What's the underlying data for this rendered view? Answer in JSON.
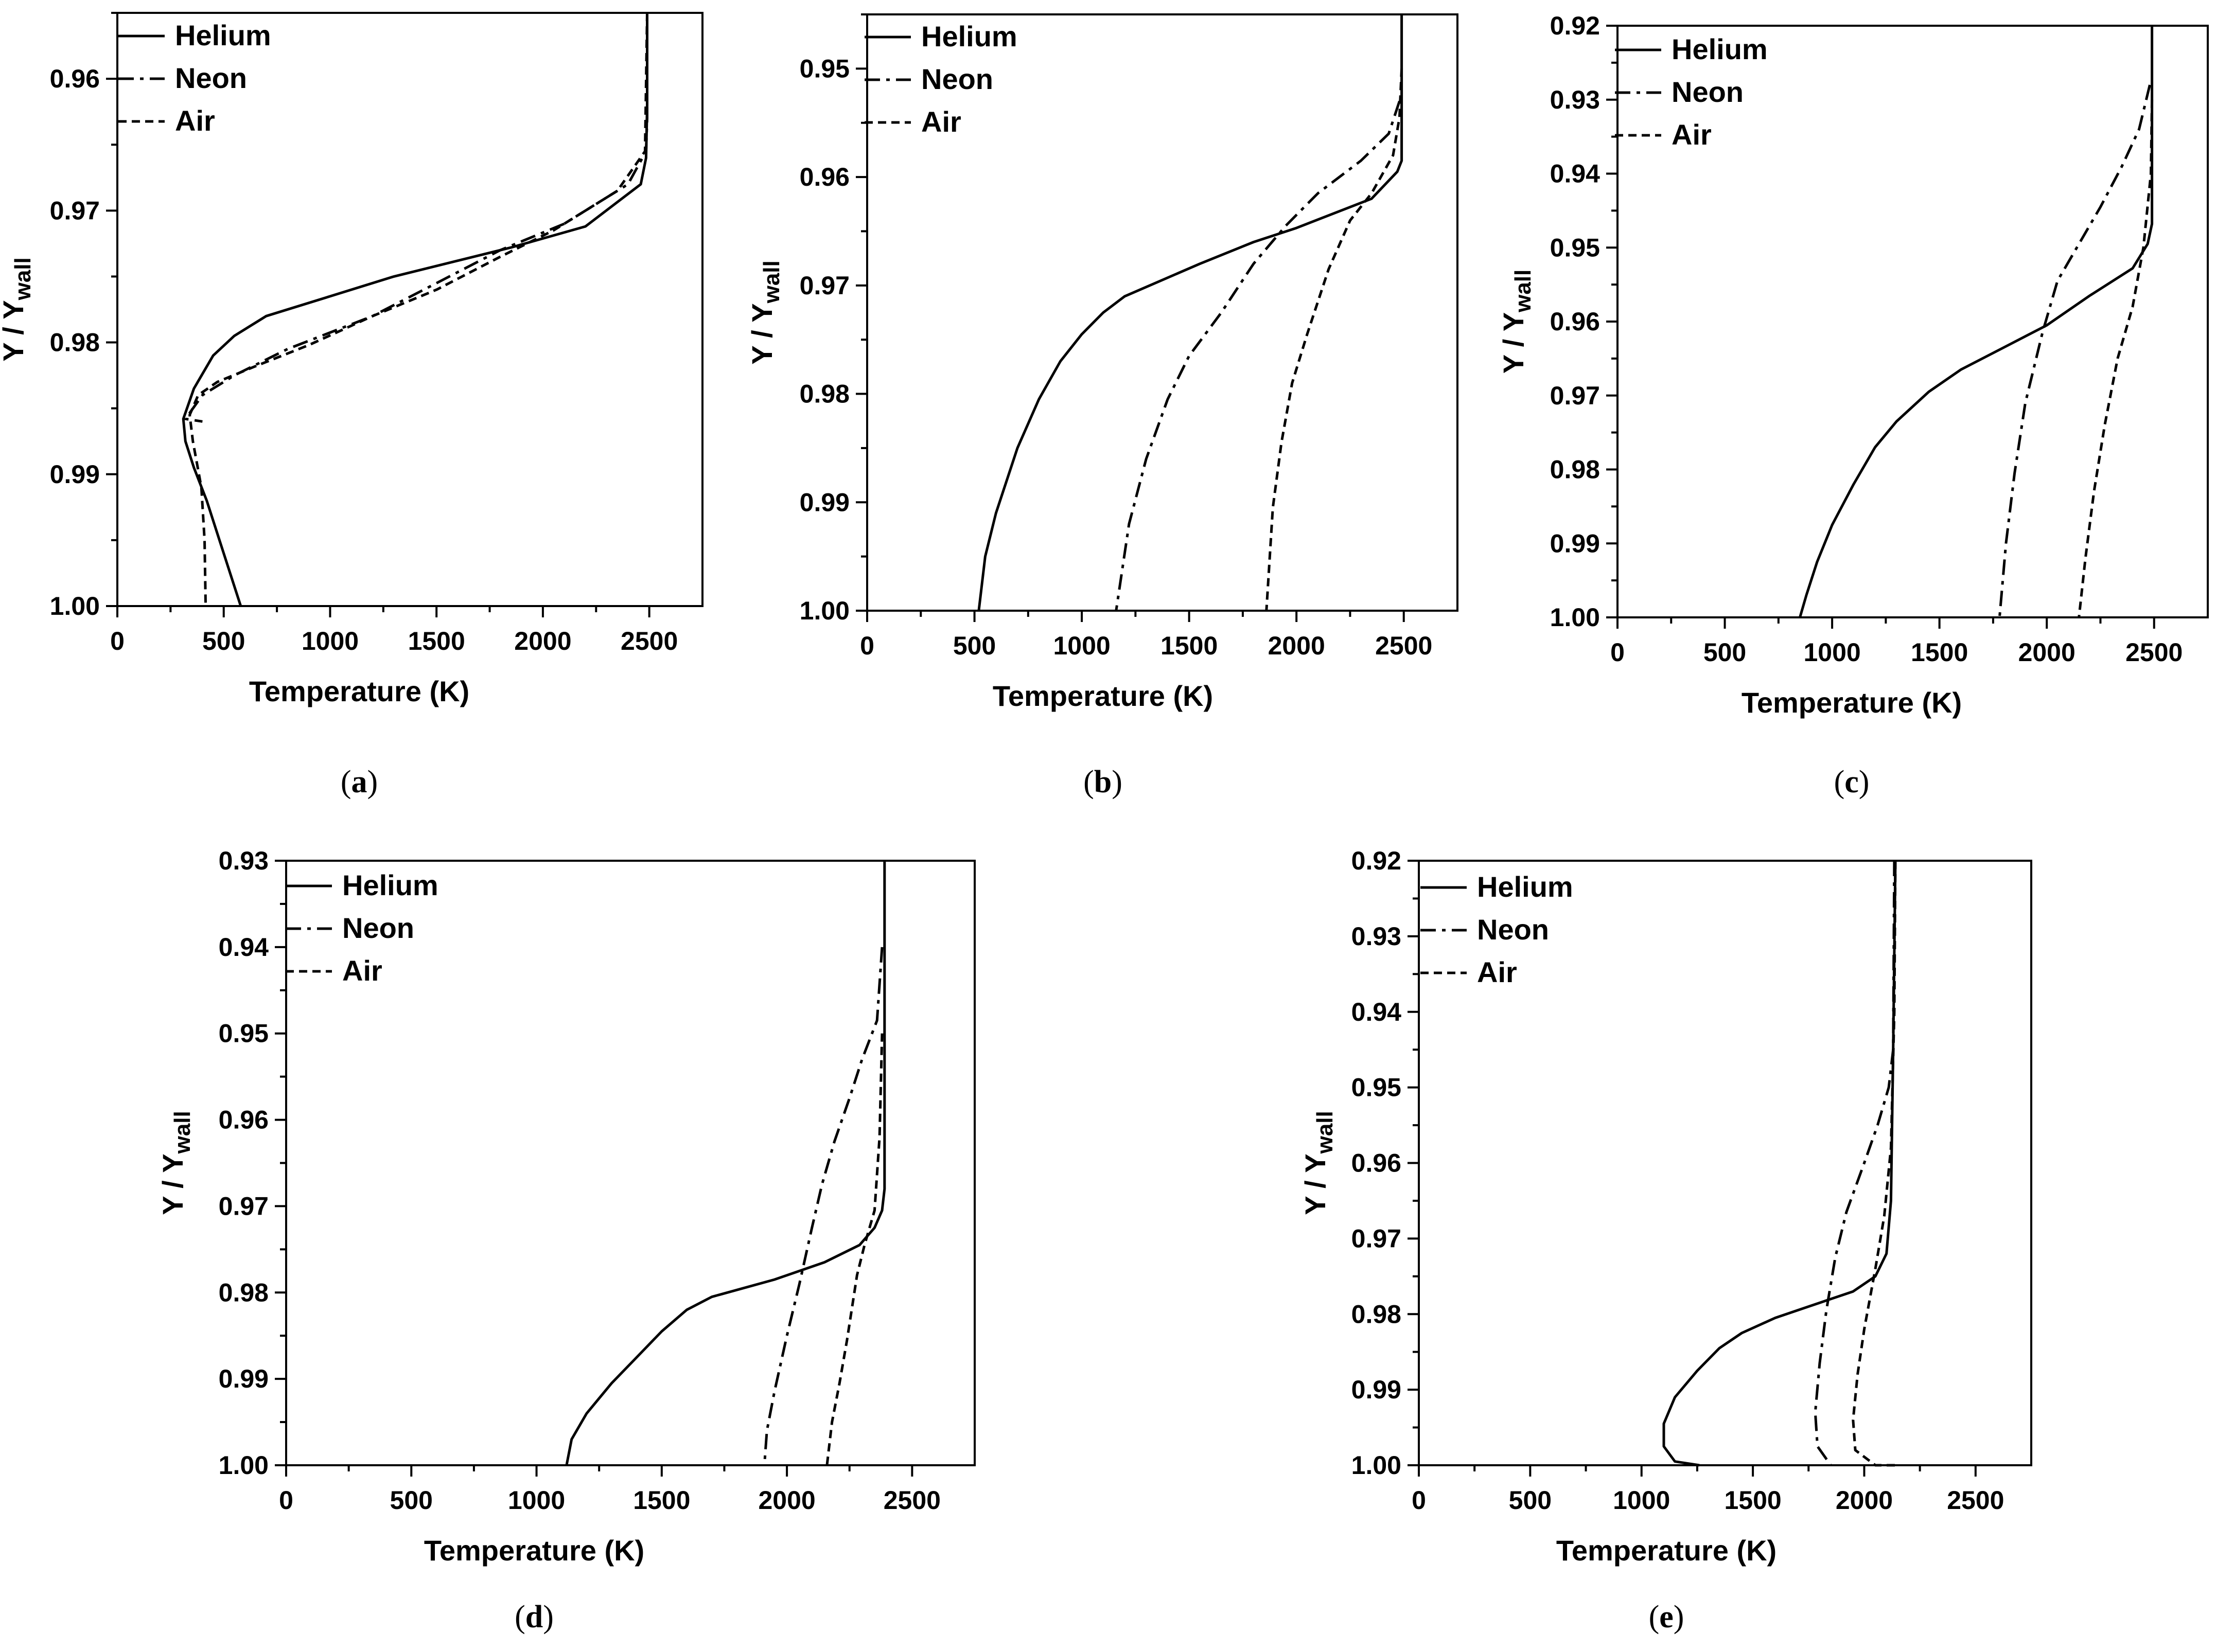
{
  "figure": {
    "panel_letters": [
      "a",
      "b",
      "c",
      "d",
      "e"
    ],
    "colors": {
      "ink": "#000000",
      "background": "#ffffff"
    }
  },
  "chart_data": [
    {
      "type": "line",
      "panel": "a",
      "xlabel": "Temperature (K)",
      "ylabel": "Y / Y",
      "ylabel_sub": "wall",
      "xlim": [
        0,
        2750
      ],
      "ylim": [
        0.955,
        1.0
      ],
      "y_inverted": true,
      "xticks": [
        0,
        500,
        1000,
        1500,
        2000,
        2500
      ],
      "yticks": [
        0.96,
        0.97,
        0.98,
        0.99,
        1.0
      ],
      "ytick_labels": [
        "0.96",
        "0.97",
        "0.98",
        "0.99",
        "1.00"
      ],
      "legend": "top-left",
      "series": [
        {
          "name": "Helium",
          "style": "solid",
          "points": [
            [
              2490,
              0.955
            ],
            [
              2490,
              0.962
            ],
            [
              2485,
              0.966
            ],
            [
              2460,
              0.968
            ],
            [
              2200,
              0.9712
            ],
            [
              1850,
              0.9728
            ],
            [
              1600,
              0.9738
            ],
            [
              1300,
              0.975
            ],
            [
              1000,
              0.9765
            ],
            [
              700,
              0.978
            ],
            [
              550,
              0.9795
            ],
            [
              450,
              0.981
            ],
            [
              360,
              0.9835
            ],
            [
              310,
              0.9858
            ],
            [
              320,
              0.9875
            ],
            [
              360,
              0.9895
            ],
            [
              420,
              0.992
            ],
            [
              500,
              0.996
            ],
            [
              580,
              1.0
            ]
          ]
        },
        {
          "name": "Neon",
          "style": "dashdot",
          "points": [
            [
              2490,
              0.955
            ],
            [
              2490,
              0.963
            ],
            [
              2485,
              0.9655
            ],
            [
              2400,
              0.968
            ],
            [
              2100,
              0.971
            ],
            [
              1800,
              0.973
            ],
            [
              1500,
              0.9755
            ],
            [
              1200,
              0.978
            ],
            [
              800,
              0.9805
            ],
            [
              550,
              0.9825
            ],
            [
              400,
              0.984
            ],
            [
              320,
              0.9858
            ],
            [
              400,
              0.986
            ]
          ]
        },
        {
          "name": "Air",
          "style": "dotted",
          "points": [
            [
              2490,
              0.955
            ],
            [
              2480,
              0.9655
            ],
            [
              2350,
              0.9685
            ],
            [
              2050,
              0.9715
            ],
            [
              1800,
              0.9735
            ],
            [
              1500,
              0.976
            ],
            [
              1200,
              0.978
            ],
            [
              900,
              0.9802
            ],
            [
              650,
              0.9818
            ],
            [
              470,
              0.983
            ],
            [
              380,
              0.984
            ],
            [
              340,
              0.9855
            ],
            [
              355,
              0.9875
            ],
            [
              395,
              0.991
            ],
            [
              410,
              0.995
            ],
            [
              415,
              1.0
            ]
          ]
        }
      ]
    },
    {
      "type": "line",
      "panel": "b",
      "xlabel": "Temperature (K)",
      "ylabel": "Y / Y",
      "ylabel_sub": "wall",
      "xlim": [
        0,
        2750
      ],
      "ylim": [
        0.945,
        1.0
      ],
      "y_inverted": true,
      "xticks": [
        0,
        500,
        1000,
        1500,
        2000,
        2500
      ],
      "yticks": [
        0.95,
        0.96,
        0.97,
        0.98,
        0.99,
        1.0
      ],
      "ytick_labels": [
        "0.95",
        "0.96",
        "0.97",
        "0.98",
        "0.99",
        "1.00"
      ],
      "legend": "top-left",
      "series": [
        {
          "name": "Helium",
          "style": "solid",
          "points": [
            [
              2490,
              0.945
            ],
            [
              2490,
              0.9585
            ],
            [
              2470,
              0.9595
            ],
            [
              2350,
              0.962
            ],
            [
              2000,
              0.9647
            ],
            [
              1800,
              0.966
            ],
            [
              1550,
              0.968
            ],
            [
              1200,
              0.971
            ],
            [
              1100,
              0.9725
            ],
            [
              1000,
              0.9745
            ],
            [
              900,
              0.977
            ],
            [
              800,
              0.9805
            ],
            [
              700,
              0.985
            ],
            [
              600,
              0.991
            ],
            [
              550,
              0.995
            ],
            [
              520,
              1.0
            ]
          ]
        },
        {
          "name": "Neon",
          "style": "dashdot",
          "points": [
            [
              2480,
              0.953
            ],
            [
              2430,
              0.956
            ],
            [
              2300,
              0.9585
            ],
            [
              2100,
              0.9615
            ],
            [
              1950,
              0.9645
            ],
            [
              1800,
              0.968
            ],
            [
              1650,
              0.9725
            ],
            [
              1500,
              0.9765
            ],
            [
              1400,
              0.9805
            ],
            [
              1300,
              0.986
            ],
            [
              1220,
              0.992
            ],
            [
              1160,
              1.0
            ]
          ]
        },
        {
          "name": "Air",
          "style": "dotted",
          "points": [
            [
              2490,
              0.95
            ],
            [
              2480,
              0.9545
            ],
            [
              2450,
              0.958
            ],
            [
              2350,
              0.9615
            ],
            [
              2250,
              0.964
            ],
            [
              2150,
              0.9685
            ],
            [
              2050,
              0.9745
            ],
            [
              1980,
              0.979
            ],
            [
              1930,
              0.9845
            ],
            [
              1890,
              0.9905
            ],
            [
              1860,
              1.0
            ]
          ]
        }
      ]
    },
    {
      "type": "line",
      "panel": "c",
      "xlabel": "Temperature (K)",
      "ylabel": "Y / Y",
      "ylabel_sub": "wall",
      "xlim": [
        0,
        2750
      ],
      "ylim": [
        0.92,
        1.0
      ],
      "y_inverted": true,
      "xticks": [
        0,
        500,
        1000,
        1500,
        2000,
        2500
      ],
      "yticks": [
        0.92,
        0.93,
        0.94,
        0.95,
        0.96,
        0.97,
        0.98,
        0.99,
        1.0
      ],
      "ytick_labels": [
        "0.92",
        "0.93",
        "0.94",
        "0.95",
        "0.96",
        "0.97",
        "0.98",
        "0.99",
        "1.00"
      ],
      "legend": "top-left",
      "series": [
        {
          "name": "Helium",
          "style": "solid",
          "points": [
            [
              2490,
              0.92
            ],
            [
              2490,
              0.9468
            ],
            [
              2470,
              0.9495
            ],
            [
              2400,
              0.9528
            ],
            [
              2200,
              0.9565
            ],
            [
              2000,
              0.9605
            ],
            [
              1800,
              0.9635
            ],
            [
              1600,
              0.9665
            ],
            [
              1450,
              0.9695
            ],
            [
              1300,
              0.9735
            ],
            [
              1200,
              0.977
            ],
            [
              1100,
              0.982
            ],
            [
              1000,
              0.9875
            ],
            [
              930,
              0.9925
            ],
            [
              880,
              0.997
            ],
            [
              850,
              1.0
            ]
          ]
        },
        {
          "name": "Neon",
          "style": "dashdot",
          "points": [
            [
              2480,
              0.928
            ],
            [
              2430,
              0.934
            ],
            [
              2350,
              0.939
            ],
            [
              2250,
              0.9445
            ],
            [
              2150,
              0.9495
            ],
            [
              2050,
              0.9545
            ],
            [
              1980,
              0.9615
            ],
            [
              1900,
              0.971
            ],
            [
              1850,
              0.9805
            ],
            [
              1810,
              0.99
            ],
            [
              1780,
              1.0
            ]
          ]
        },
        {
          "name": "Air",
          "style": "dotted",
          "points": [
            [
              2490,
              0.93
            ],
            [
              2485,
              0.94
            ],
            [
              2450,
              0.95
            ],
            [
              2400,
              0.958
            ],
            [
              2330,
              0.965
            ],
            [
              2270,
              0.974
            ],
            [
              2220,
              0.983
            ],
            [
              2180,
              0.992
            ],
            [
              2150,
              1.0
            ]
          ]
        }
      ]
    },
    {
      "type": "line",
      "panel": "d",
      "xlabel": "Temperature (K)",
      "ylabel": "Y / Y",
      "ylabel_sub": "wall",
      "xlim": [
        0,
        2750
      ],
      "ylim": [
        0.93,
        1.0
      ],
      "y_inverted": true,
      "xticks": [
        0,
        500,
        1000,
        1500,
        2000,
        2500
      ],
      "yticks": [
        0.93,
        0.94,
        0.95,
        0.96,
        0.97,
        0.98,
        0.99,
        1.0
      ],
      "ytick_labels": [
        "0.93",
        "0.94",
        "0.95",
        "0.96",
        "0.97",
        "0.98",
        "0.99",
        "1.00"
      ],
      "legend": "top-left",
      "series": [
        {
          "name": "Helium",
          "style": "solid",
          "points": [
            [
              2390,
              0.93
            ],
            [
              2390,
              0.968
            ],
            [
              2380,
              0.9705
            ],
            [
              2350,
              0.9725
            ],
            [
              2290,
              0.9745
            ],
            [
              2150,
              0.9765
            ],
            [
              1950,
              0.9785
            ],
            [
              1700,
              0.9805
            ],
            [
              1600,
              0.982
            ],
            [
              1500,
              0.9845
            ],
            [
              1400,
              0.9875
            ],
            [
              1300,
              0.9905
            ],
            [
              1200,
              0.994
            ],
            [
              1140,
              0.997
            ],
            [
              1120,
              1.0
            ]
          ]
        },
        {
          "name": "Neon",
          "style": "dashdot",
          "points": [
            [
              2380,
              0.94
            ],
            [
              2360,
              0.9485
            ],
            [
              2300,
              0.953
            ],
            [
              2250,
              0.9575
            ],
            [
              2190,
              0.9625
            ],
            [
              2140,
              0.9675
            ],
            [
              2100,
              0.9725
            ],
            [
              2050,
              0.979
            ],
            [
              2000,
              0.985
            ],
            [
              1950,
              0.9915
            ],
            [
              1920,
              0.996
            ],
            [
              1910,
              1.0
            ]
          ]
        },
        {
          "name": "Air",
          "style": "dotted",
          "points": [
            [
              2380,
              0.95
            ],
            [
              2370,
              0.962
            ],
            [
              2350,
              0.9705
            ],
            [
              2310,
              0.9745
            ],
            [
              2280,
              0.978
            ],
            [
              2240,
              0.9855
            ],
            [
              2210,
              0.9905
            ],
            [
              2180,
              0.995
            ],
            [
              2160,
              1.0
            ]
          ]
        }
      ]
    },
    {
      "type": "line",
      "panel": "e",
      "xlabel": "Temperature (K)",
      "ylabel": "Y / Y",
      "ylabel_sub": "wall",
      "xlim": [
        0,
        2750
      ],
      "ylim": [
        0.92,
        1.0
      ],
      "y_inverted": true,
      "xticks": [
        0,
        500,
        1000,
        1500,
        2000,
        2500
      ],
      "yticks": [
        0.92,
        0.93,
        0.94,
        0.95,
        0.96,
        0.97,
        0.98,
        0.99,
        1.0
      ],
      "ytick_labels": [
        "0.92",
        "0.93",
        "0.94",
        "0.95",
        "0.96",
        "0.97",
        "0.98",
        "0.99",
        "1.00"
      ],
      "legend": "top-left",
      "series": [
        {
          "name": "Helium",
          "style": "solid",
          "points": [
            [
              2140,
              0.92
            ],
            [
              2130,
              0.945
            ],
            [
              2120,
              0.965
            ],
            [
              2100,
              0.972
            ],
            [
              2050,
              0.975
            ],
            [
              1950,
              0.977
            ],
            [
              1800,
              0.9785
            ],
            [
              1600,
              0.9805
            ],
            [
              1450,
              0.9825
            ],
            [
              1350,
              0.9845
            ],
            [
              1250,
              0.9875
            ],
            [
              1150,
              0.991
            ],
            [
              1100,
              0.9945
            ],
            [
              1100,
              0.9975
            ],
            [
              1150,
              0.9995
            ],
            [
              1260,
              1.0
            ]
          ]
        },
        {
          "name": "Neon",
          "style": "dashdot",
          "points": [
            [
              2135,
              0.92
            ],
            [
              2130,
              0.945
            ],
            [
              2110,
              0.95
            ],
            [
              2060,
              0.955
            ],
            [
              2000,
              0.96
            ],
            [
              1920,
              0.9665
            ],
            [
              1870,
              0.9725
            ],
            [
              1830,
              0.9795
            ],
            [
              1800,
              0.9865
            ],
            [
              1780,
              0.993
            ],
            [
              1790,
              0.9975
            ],
            [
              1850,
              1.0
            ]
          ]
        },
        {
          "name": "Air",
          "style": "dotted",
          "points": [
            [
              2140,
              0.92
            ],
            [
              2135,
              0.94
            ],
            [
              2120,
              0.958
            ],
            [
              2090,
              0.967
            ],
            [
              2050,
              0.974
            ],
            [
              2000,
              0.982
            ],
            [
              1970,
              0.988
            ],
            [
              1950,
              0.994
            ],
            [
              1960,
              0.998
            ],
            [
              2050,
              1.0
            ],
            [
              2150,
              1.0
            ]
          ]
        }
      ]
    }
  ]
}
